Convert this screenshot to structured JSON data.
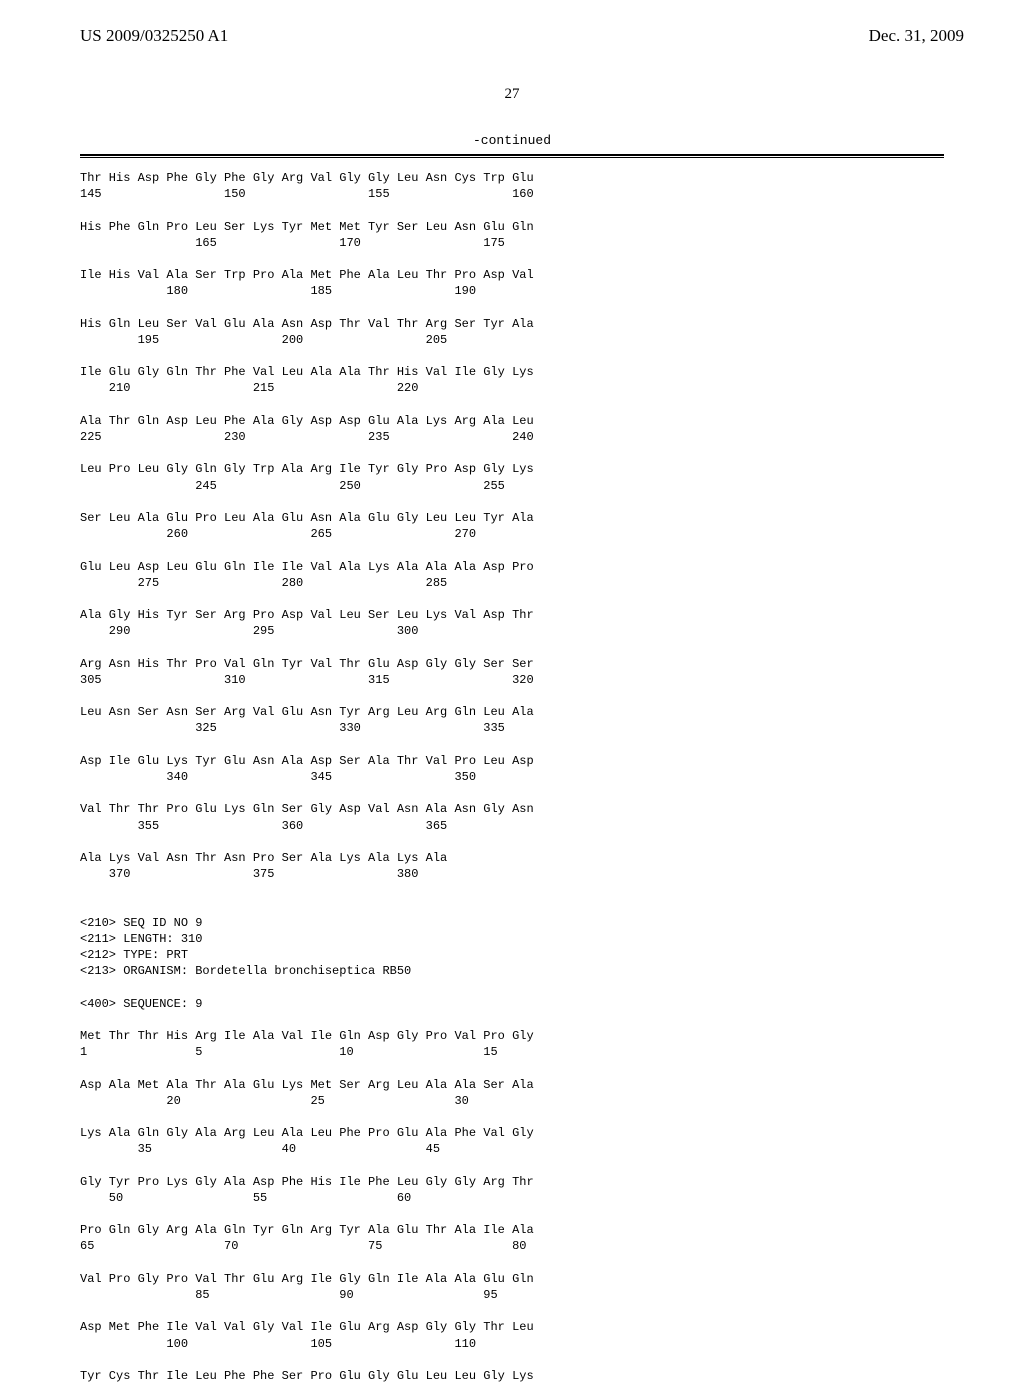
{
  "header": {
    "pub_number": "US 2009/0325250 A1",
    "pub_date": "Dec. 31, 2009"
  },
  "page_number": "27",
  "continued_label": "-continued",
  "listing": "Thr His Asp Phe Gly Phe Gly Arg Val Gly Gly Leu Asn Cys Trp Glu\n145                 150                 155                 160\n\nHis Phe Gln Pro Leu Ser Lys Tyr Met Met Tyr Ser Leu Asn Glu Gln\n                165                 170                 175\n\nIle His Val Ala Ser Trp Pro Ala Met Phe Ala Leu Thr Pro Asp Val\n            180                 185                 190\n\nHis Gln Leu Ser Val Glu Ala Asn Asp Thr Val Thr Arg Ser Tyr Ala\n        195                 200                 205\n\nIle Glu Gly Gln Thr Phe Val Leu Ala Ala Thr His Val Ile Gly Lys\n    210                 215                 220\n\nAla Thr Gln Asp Leu Phe Ala Gly Asp Asp Glu Ala Lys Arg Ala Leu\n225                 230                 235                 240\n\nLeu Pro Leu Gly Gln Gly Trp Ala Arg Ile Tyr Gly Pro Asp Gly Lys\n                245                 250                 255\n\nSer Leu Ala Glu Pro Leu Ala Glu Asn Ala Glu Gly Leu Leu Tyr Ala\n            260                 265                 270\n\nGlu Leu Asp Leu Glu Gln Ile Ile Val Ala Lys Ala Ala Ala Asp Pro\n        275                 280                 285\n\nAla Gly His Tyr Ser Arg Pro Asp Val Leu Ser Leu Lys Val Asp Thr\n    290                 295                 300\n\nArg Asn His Thr Pro Val Gln Tyr Val Thr Glu Asp Gly Gly Ser Ser\n305                 310                 315                 320\n\nLeu Asn Ser Asn Ser Arg Val Glu Asn Tyr Arg Leu Arg Gln Leu Ala\n                325                 330                 335\n\nAsp Ile Glu Lys Tyr Glu Asn Ala Asp Ser Ala Thr Val Pro Leu Asp\n            340                 345                 350\n\nVal Thr Thr Pro Glu Lys Gln Ser Gly Asp Val Asn Ala Asn Gly Asn\n        355                 360                 365\n\nAla Lys Val Asn Thr Asn Pro Ser Ala Lys Ala Lys Ala\n    370                 375                 380\n\n\n<210> SEQ ID NO 9\n<211> LENGTH: 310\n<212> TYPE: PRT\n<213> ORGANISM: Bordetella bronchiseptica RB50\n\n<400> SEQUENCE: 9\n\nMet Thr Thr His Arg Ile Ala Val Ile Gln Asp Gly Pro Val Pro Gly\n1               5                   10                  15\n\nAsp Ala Met Ala Thr Ala Glu Lys Met Ser Arg Leu Ala Ala Ser Ala\n            20                  25                  30\n\nLys Ala Gln Gly Ala Arg Leu Ala Leu Phe Pro Glu Ala Phe Val Gly\n        35                  40                  45\n\nGly Tyr Pro Lys Gly Ala Asp Phe His Ile Phe Leu Gly Gly Arg Thr\n    50                  55                  60\n\nPro Gln Gly Arg Ala Gln Tyr Gln Arg Tyr Ala Glu Thr Ala Ile Ala\n65                  70                  75                  80\n\nVal Pro Gly Pro Val Thr Glu Arg Ile Gly Gln Ile Ala Ala Glu Gln\n                85                  90                  95\n\nAsp Met Phe Ile Val Val Gly Val Ile Glu Arg Asp Gly Gly Thr Leu\n            100                 105                 110\n\nTyr Cys Thr Ile Leu Phe Phe Ser Pro Glu Gly Glu Leu Leu Gly Lys"
}
